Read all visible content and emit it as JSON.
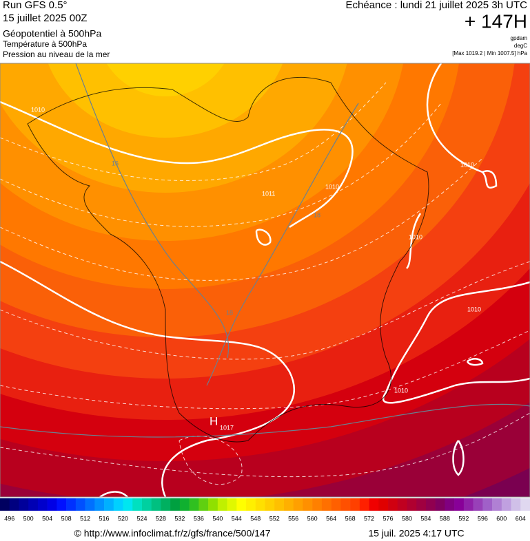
{
  "header": {
    "run": "Run GFS 0.5°",
    "date": "15 juillet 2025 00Z",
    "fields": [
      "Géopotentiel à 500hPa",
      "Température à 500hPa",
      "Pression au niveau de la mer"
    ],
    "valid": "Echéance : lundi 21 juillet 2025 3h UTC",
    "lead": "+ 147H",
    "units": [
      "gpdam",
      "degC"
    ],
    "range": "[Max 1019.2 | Min 1007.5] hPa"
  },
  "map": {
    "isobar_labels": [
      "1010",
      "1010",
      "1011",
      "1010",
      "1010",
      "1010",
      "1010"
    ],
    "high": "H",
    "high_value": "1017",
    "isotherm_labels": [
      "16",
      "18",
      "18"
    ]
  },
  "legend": {
    "labels": [
      496,
      500,
      504,
      508,
      512,
      516,
      520,
      524,
      528,
      532,
      536,
      540,
      544,
      548,
      552,
      556,
      560,
      564,
      568,
      572,
      576,
      580,
      584,
      588,
      592,
      596,
      600,
      604
    ],
    "colors": [
      "#000060",
      "#000080",
      "#00009a",
      "#0000b4",
      "#0000cc",
      "#0000e6",
      "#0010ff",
      "#0030ff",
      "#0050ff",
      "#0070ff",
      "#0090ff",
      "#00b0ff",
      "#00d0ff",
      "#00e6f0",
      "#00e0c0",
      "#00d0a0",
      "#00c080",
      "#00b060",
      "#00a040",
      "#10b030",
      "#30c020",
      "#60d010",
      "#90e000",
      "#c0f000",
      "#e0f800",
      "#ffff00",
      "#fff000",
      "#ffe000",
      "#ffd000",
      "#ffc000",
      "#ffb000",
      "#ffa000",
      "#ff9000",
      "#ff8000",
      "#ff7000",
      "#ff6000",
      "#ff5000",
      "#ff4000",
      "#ff2000",
      "#f00000",
      "#e00000",
      "#d00010",
      "#c00020",
      "#b00030",
      "#a00040",
      "#900050",
      "#800060",
      "#800080",
      "#880098",
      "#9020a8",
      "#9840b8",
      "#a060c8",
      "#b080d4",
      "#c0a0e0",
      "#d0c0e8",
      "#e0d8f0"
    ]
  },
  "footer": {
    "source": "© http://www.infoclimat.fr/z/gfs/france/500/147",
    "timestamp": "15 juil. 2025  4:17 UTC"
  }
}
